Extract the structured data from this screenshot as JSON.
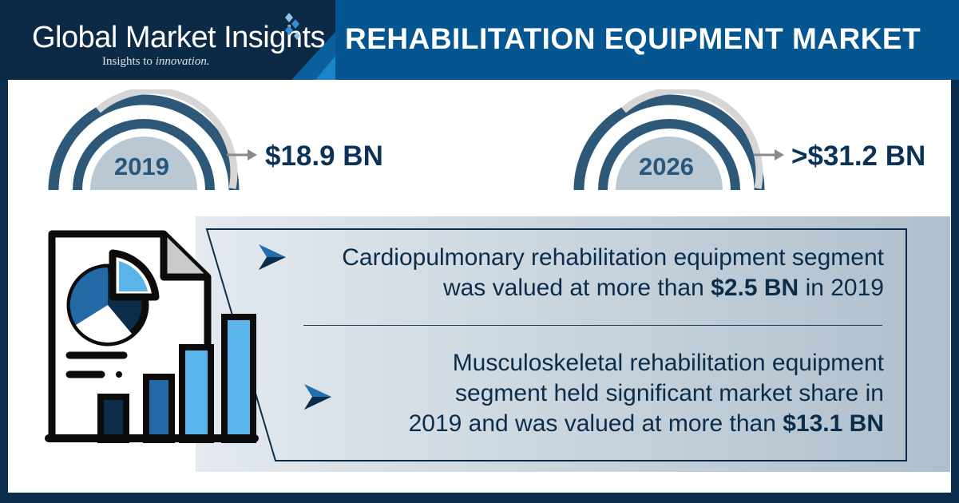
{
  "brand": {
    "name": "Global Market Insights",
    "tagline_prefix": "Insights to",
    "tagline_emphasis": "innovation."
  },
  "header": {
    "title": "REHABILITATION EQUIPMENT MARKET"
  },
  "stats": [
    {
      "year": "2019",
      "value": "$18.9 BN"
    },
    {
      "year": "2026",
      "value": ">$31.2 BN"
    }
  ],
  "facts": [
    {
      "line1": "Cardiopulmonary rehabilitation equipment segment",
      "line2_pre": "was valued at more than",
      "line2_bold": "$2.5 BN",
      "line2_post": "in 2019"
    },
    {
      "line1": "Musculoskeletal rehabilitation equipment",
      "line2": "segment held significant market share in",
      "line3_pre": "2019 and was valued at more than",
      "line3_bold": "$13.1 BN"
    }
  ],
  "colors": {
    "navy": "#0c2a45",
    "header_blue": "#055590",
    "gauge_dark": "#2e5878",
    "gauge_light": "#d6d6d6",
    "gauge_fill": "#b9c8d2",
    "accent_blue": "#1f6fb0",
    "light_blue": "#5ab4ea"
  },
  "icons": [
    "document-chart-icon",
    "pie-chart-icon",
    "bar-chart-icon",
    "bullet-arrow-icon",
    "gauge-icon",
    "right-arrow-icon",
    "logo-diamond-icon"
  ]
}
